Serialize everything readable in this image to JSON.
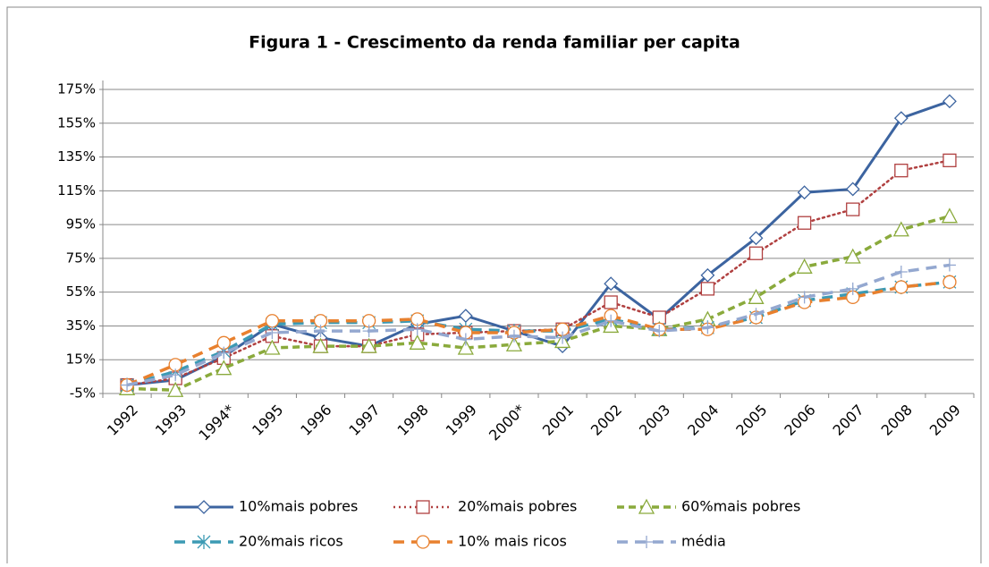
{
  "chart_data": {
    "type": "line",
    "title": "Figura 1 - Crescimento da renda familiar per capita",
    "categories": [
      "1992",
      "1993",
      "1994*",
      "1995",
      "1996",
      "1997",
      "1998",
      "1999",
      "2000*",
      "2001",
      "2002",
      "2003",
      "2004",
      "2005",
      "2006",
      "2007",
      "2008",
      "2009"
    ],
    "series": [
      {
        "name": "10%mais pobres",
        "color": "#3c64a0",
        "marker": "diamond",
        "dash": "solid",
        "values": [
          0,
          3,
          17,
          36,
          28,
          23,
          36,
          41,
          32,
          23,
          60,
          39,
          65,
          87,
          114,
          116,
          158,
          168
        ]
      },
      {
        "name": "20%mais pobres",
        "color": "#b04040",
        "marker": "square",
        "dash": "dotted",
        "values": [
          0,
          4,
          16,
          29,
          23,
          23,
          30,
          31,
          32,
          33,
          49,
          40,
          57,
          78,
          96,
          104,
          127,
          133
        ]
      },
      {
        "name": "60%mais pobres",
        "color": "#8aaa3c",
        "marker": "triangle",
        "dash": "dashed",
        "values": [
          -2,
          -3,
          10,
          22,
          23,
          23,
          25,
          22,
          24,
          26,
          35,
          33,
          39,
          52,
          70,
          76,
          92,
          100
        ]
      },
      {
        "name": "20%mais ricos",
        "color": "#3c9ab4",
        "marker": "star",
        "dash": "longdash",
        "values": [
          0,
          8,
          20,
          36,
          37,
          37,
          38,
          33,
          32,
          32,
          39,
          33,
          34,
          40,
          50,
          54,
          58,
          61
        ]
      },
      {
        "name": "10% mais ricos",
        "color": "#e8802e",
        "marker": "circle",
        "dash": "longdash",
        "values": [
          0,
          12,
          25,
          38,
          38,
          38,
          39,
          31,
          31,
          33,
          41,
          33,
          33,
          40,
          49,
          52,
          58,
          61
        ]
      },
      {
        "name": "média",
        "color": "#94a8d0",
        "marker": "plus",
        "dash": "longdash",
        "values": [
          0,
          6,
          19,
          31,
          32,
          32,
          33,
          27,
          29,
          28,
          38,
          32,
          34,
          42,
          52,
          57,
          67,
          71
        ]
      }
    ],
    "ylim": [
      -5,
      175
    ],
    "yticks": [
      {
        "value": -5,
        "label": "-5%"
      },
      {
        "value": 15,
        "label": "15%"
      },
      {
        "value": 35,
        "label": "35%"
      },
      {
        "value": 55,
        "label": "55%"
      },
      {
        "value": 75,
        "label": "75%"
      },
      {
        "value": 95,
        "label": "95%"
      },
      {
        "value": 115,
        "label": "115%"
      },
      {
        "value": 135,
        "label": "135%"
      },
      {
        "value": 155,
        "label": "155%"
      },
      {
        "value": 175,
        "label": "175%"
      }
    ],
    "grid": true,
    "legend": "bottom"
  }
}
